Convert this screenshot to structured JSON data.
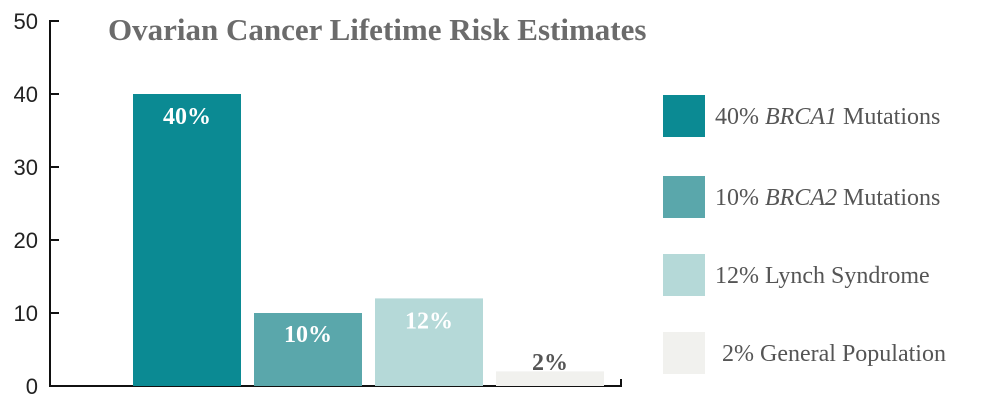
{
  "chart_data": {
    "type": "bar",
    "title": "Ovarian Cancer Lifetime Risk Estimates",
    "xlabel": "",
    "ylabel": "",
    "ylim": [
      0,
      50
    ],
    "yticks": [
      "0",
      "10",
      "20",
      "30",
      "40",
      "50"
    ],
    "grid": false,
    "legend_position": "right",
    "categories": [
      "BRCA1 Mutations",
      "BRCA2 Mutations",
      "Lynch Syndrome",
      "General Population"
    ],
    "values": [
      40,
      10,
      12,
      2
    ],
    "data_labels": [
      "40%",
      "10%",
      "12%",
      "2%"
    ],
    "colors": [
      "#0b8a93",
      "#5aa7ab",
      "#b5d9d8",
      "#f1f1ee"
    ],
    "label_colors": [
      "#ffffff",
      "#ffffff",
      "#ffffff",
      "#555555"
    ],
    "legend": [
      {
        "prefix": "40% ",
        "emph": "BRCA1",
        "suffix": " Mutations",
        "color": "#0b8a93"
      },
      {
        "prefix": "10% ",
        "emph": "BRCA2",
        "suffix": " Mutations",
        "color": "#5aa7ab"
      },
      {
        "prefix": "12% Lynch Syndrome",
        "emph": "",
        "suffix": "",
        "color": "#b5d9d8"
      },
      {
        "prefix": "2% General Population",
        "emph": "",
        "suffix": "",
        "color": "#f1f1ee"
      }
    ]
  }
}
